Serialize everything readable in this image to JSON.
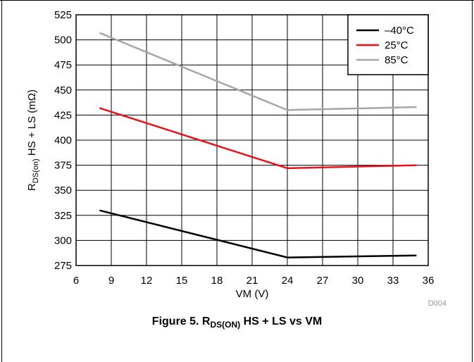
{
  "chart_data": {
    "type": "line",
    "xlabel": "VM (V)",
    "ylabel": {
      "main": "R",
      "sub": "DS(on)",
      "rest": " HS + LS (mΩ)"
    },
    "xlim": [
      6,
      36
    ],
    "ylim": [
      275,
      525
    ],
    "x_ticks": [
      "6",
      "9",
      "12",
      "15",
      "18",
      "21",
      "24",
      "27",
      "30",
      "33",
      "36"
    ],
    "y_ticks": [
      "275",
      "300",
      "325",
      "350",
      "375",
      "400",
      "425",
      "450",
      "475",
      "500",
      "525"
    ],
    "grid": true,
    "legend_position": "top-right",
    "series": [
      {
        "name": "–40°C",
        "color": "#000000",
        "x": [
          8,
          24,
          35
        ],
        "values": [
          330,
          283,
          285
        ]
      },
      {
        "name": "25°C",
        "color": "#e8131b",
        "x": [
          8,
          24,
          35
        ],
        "values": [
          432,
          372,
          375
        ]
      },
      {
        "name": "85°C",
        "color": "#a6a6a6",
        "x": [
          8,
          24,
          35
        ],
        "values": [
          507,
          430,
          433
        ]
      }
    ],
    "code_label": "D004"
  },
  "caption": {
    "prefix": "Figure 5. R",
    "sub": "DS(ON)",
    "suffix": " HS + LS vs VM"
  }
}
